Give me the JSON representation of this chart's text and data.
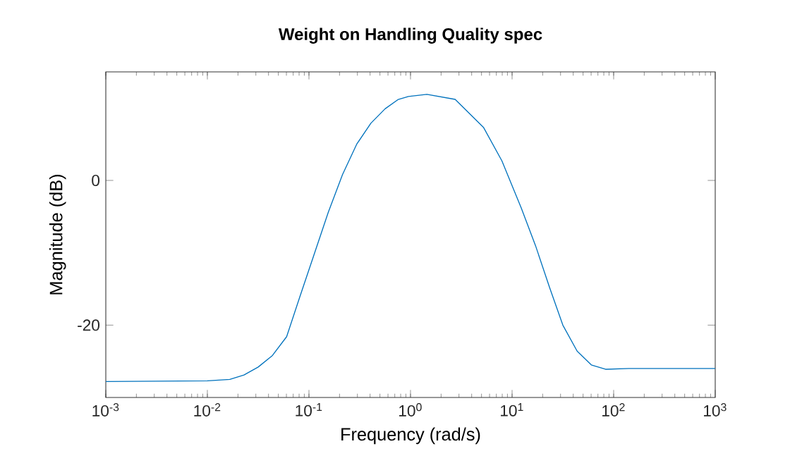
{
  "chart_data": {
    "type": "line",
    "title": "Weight on Handling Quality spec",
    "xlabel": "Frequency (rad/s)",
    "ylabel": "Magnitude (dB)",
    "log": "x",
    "grid": false,
    "marker": "none",
    "line_style": "solid",
    "xlim": [
      0.001,
      1000
    ],
    "ylim": [
      -30,
      15
    ],
    "xticks": [
      {
        "value": 0.001,
        "label": "10$^{-3}$"
      },
      {
        "value": 0.01,
        "label": "10$^{-2}$"
      },
      {
        "value": 0.1,
        "label": "10$^{-1}$"
      },
      {
        "value": 1,
        "label": "10$^{0}$"
      },
      {
        "value": 10,
        "label": "10$^{1}$"
      },
      {
        "value": 100,
        "label": "10$^{2}$"
      },
      {
        "value": 1000,
        "label": "10$^{3}$"
      }
    ],
    "yticks": [
      -20,
      0
    ],
    "x": [
      0.001,
      0.01,
      0.0166,
      0.0229,
      0.0316,
      0.0437,
      0.0603,
      0.0813,
      0.112,
      0.155,
      0.214,
      0.295,
      0.407,
      0.562,
      0.759,
      0.955,
      1.45,
      2.75,
      5.25,
      7.94,
      12.3,
      17.0,
      23.4,
      31.6,
      43.7,
      60.3,
      83.2,
      141,
      1000
    ],
    "series": [
      {
        "color": "#0072bd",
        "values": [
          -27.8,
          -27.7,
          -27.5,
          -26.9,
          -25.8,
          -24.2,
          -21.6,
          -16.1,
          -10.3,
          -4.4,
          0.8,
          5.0,
          7.9,
          9.9,
          11.2,
          11.6,
          11.9,
          11.2,
          7.3,
          2.7,
          -3.8,
          -9.0,
          -14.8,
          -20.0,
          -23.6,
          -25.5,
          -26.1,
          -26.0,
          -26.0
        ]
      }
    ]
  }
}
